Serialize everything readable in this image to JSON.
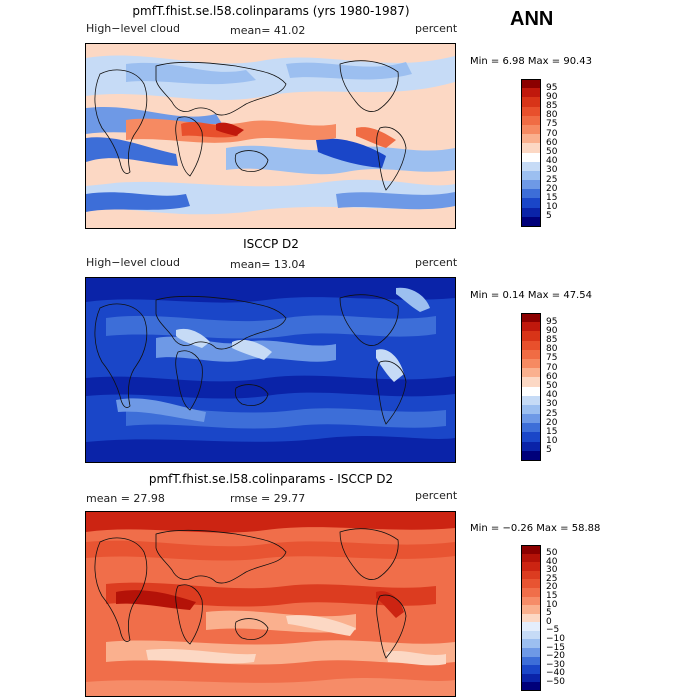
{
  "corner_label": "ANN",
  "panels": [
    {
      "title": "pmfT.fhist.se.l58.colinparams (yrs 1980-1987)",
      "left_label": "High−level cloud",
      "center_label": "mean=  41.02",
      "right_label": "percent",
      "minmax": "Min =    6.98  Max =   90.43",
      "palette": "cloud"
    },
    {
      "title": "ISCCP D2",
      "left_label": "High−level cloud",
      "center_label": "mean=  13.04",
      "right_label": "percent",
      "minmax": "Min =   0.14  Max =   47.54",
      "palette": "cloud"
    },
    {
      "title": "pmfT.fhist.se.l58.colinparams - ISCCP D2",
      "left_label": "mean =   27.98",
      "center_label": "rmse =   29.77",
      "right_label": "percent",
      "minmax": "Min =  −0.26  Max =   58.88",
      "palette": "diff"
    }
  ],
  "colorbars": {
    "cloud": {
      "labels": [
        "95",
        "90",
        "85",
        "80",
        "75",
        "70",
        "60",
        "50",
        "40",
        "30",
        "25",
        "20",
        "15",
        "10",
        "5"
      ],
      "colors": [
        "#8b0000",
        "#c0180c",
        "#d83418",
        "#e8502c",
        "#f06c44",
        "#f68a62",
        "#fab08e",
        "#fcd8c4",
        "#ffffff",
        "#c6dbf6",
        "#9cbff0",
        "#6e99e6",
        "#3d6ed8",
        "#1a46c8",
        "#0a23a8",
        "#00007a"
      ]
    },
    "diff": {
      "labels": [
        "50",
        "40",
        "30",
        "25",
        "20",
        "15",
        "10",
        "5",
        "0",
        "−5",
        "−10",
        "−15",
        "−20",
        "−30",
        "−40",
        "−50"
      ],
      "colors": [
        "#8b0000",
        "#b41208",
        "#cc2412",
        "#dc3c20",
        "#e85432",
        "#f06e4a",
        "#f68c68",
        "#fab08e",
        "#fcd8c4",
        "#e4eefc",
        "#c6dbf6",
        "#9cbff0",
        "#6e99e6",
        "#3d6ed8",
        "#1a46c8",
        "#0a23a8",
        "#00007a"
      ]
    }
  }
}
